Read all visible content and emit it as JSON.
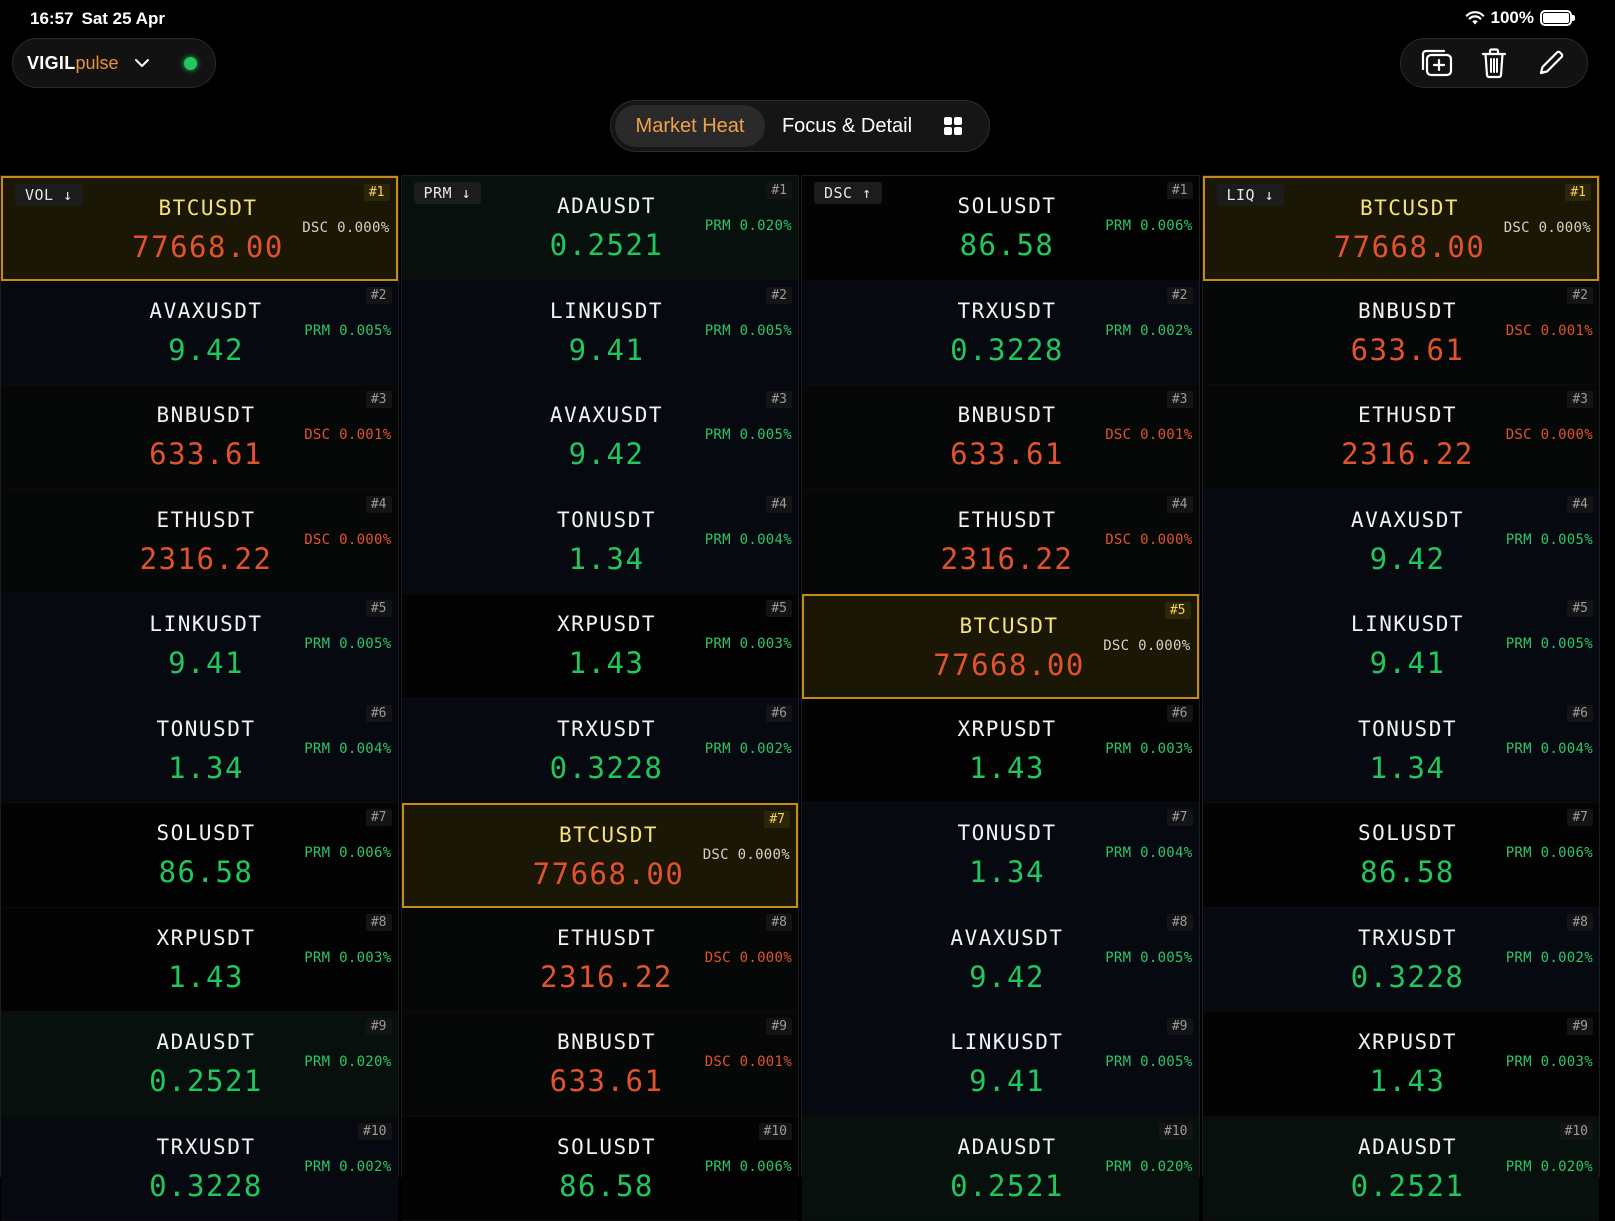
{
  "status": {
    "time": "16:57",
    "date": "Sat 25 Apr",
    "battery": "100%"
  },
  "app": {
    "brand_main": "VIGIL",
    "brand_sub": "pulse"
  },
  "tabs": {
    "market_heat": "Market Heat",
    "focus_detail": "Focus & Detail",
    "active": "Market Heat"
  },
  "icons": {
    "picker": "chevron-down-icon",
    "status": "live-status-dot",
    "add": "add-window-icon",
    "delete": "trash-icon",
    "edit": "pencil-icon",
    "grid": "grid-icon",
    "wifi": "wifi-icon",
    "battery": "battery-icon"
  },
  "colors": {
    "accent": "#f0a04b",
    "up": "#22c55e",
    "down": "#e0532e",
    "highlight_border": "#c88a17"
  },
  "columns": [
    {
      "sort_label": "VOL ↓",
      "rows": [
        {
          "rank": "#1",
          "symbol": "BTCUSDT",
          "price": "77668.00",
          "dir": "down",
          "metric": "DSC 0.000%",
          "mtype": "dsc",
          "highlight": true,
          "bg": "e"
        },
        {
          "rank": "#2",
          "symbol": "AVAXUSDT",
          "price": "9.42",
          "dir": "up",
          "metric": "PRM 0.005%",
          "mtype": "prm",
          "highlight": false,
          "bg": "a"
        },
        {
          "rank": "#3",
          "symbol": "BNBUSDT",
          "price": "633.61",
          "dir": "down",
          "metric": "DSC 0.001%",
          "mtype": "dsc",
          "highlight": false,
          "bg": "b"
        },
        {
          "rank": "#4",
          "symbol": "ETHUSDT",
          "price": "2316.22",
          "dir": "down",
          "metric": "DSC 0.000%",
          "mtype": "dsc",
          "highlight": false,
          "bg": "b"
        },
        {
          "rank": "#5",
          "symbol": "LINKUSDT",
          "price": "9.41",
          "dir": "up",
          "metric": "PRM 0.005%",
          "mtype": "prm",
          "highlight": false,
          "bg": "a"
        },
        {
          "rank": "#6",
          "symbol": "TONUSDT",
          "price": "1.34",
          "dir": "up",
          "metric": "PRM 0.004%",
          "mtype": "prm",
          "highlight": false,
          "bg": "a"
        },
        {
          "rank": "#7",
          "symbol": "SOLUSDT",
          "price": "86.58",
          "dir": "up",
          "metric": "PRM 0.006%",
          "mtype": "prm",
          "highlight": false,
          "bg": "c"
        },
        {
          "rank": "#8",
          "symbol": "XRPUSDT",
          "price": "1.43",
          "dir": "up",
          "metric": "PRM 0.003%",
          "mtype": "prm",
          "highlight": false,
          "bg": "c"
        },
        {
          "rank": "#9",
          "symbol": "ADAUSDT",
          "price": "0.2521",
          "dir": "up",
          "metric": "PRM 0.020%",
          "mtype": "prm",
          "highlight": false,
          "bg": "d"
        },
        {
          "rank": "#10",
          "symbol": "TRXUSDT",
          "price": "0.3228",
          "dir": "up",
          "metric": "PRM 0.002%",
          "mtype": "prm",
          "highlight": false,
          "bg": "a"
        }
      ]
    },
    {
      "sort_label": "PRM ↓",
      "rows": [
        {
          "rank": "#1",
          "symbol": "ADAUSDT",
          "price": "0.2521",
          "dir": "up",
          "metric": "PRM 0.020%",
          "mtype": "prm",
          "highlight": false,
          "bg": "d"
        },
        {
          "rank": "#2",
          "symbol": "LINKUSDT",
          "price": "9.41",
          "dir": "up",
          "metric": "PRM 0.005%",
          "mtype": "prm",
          "highlight": false,
          "bg": "a"
        },
        {
          "rank": "#3",
          "symbol": "AVAXUSDT",
          "price": "9.42",
          "dir": "up",
          "metric": "PRM 0.005%",
          "mtype": "prm",
          "highlight": false,
          "bg": "a"
        },
        {
          "rank": "#4",
          "symbol": "TONUSDT",
          "price": "1.34",
          "dir": "up",
          "metric": "PRM 0.004%",
          "mtype": "prm",
          "highlight": false,
          "bg": "a"
        },
        {
          "rank": "#5",
          "symbol": "XRPUSDT",
          "price": "1.43",
          "dir": "up",
          "metric": "PRM 0.003%",
          "mtype": "prm",
          "highlight": false,
          "bg": "c"
        },
        {
          "rank": "#6",
          "symbol": "TRXUSDT",
          "price": "0.3228",
          "dir": "up",
          "metric": "PRM 0.002%",
          "mtype": "prm",
          "highlight": false,
          "bg": "a"
        },
        {
          "rank": "#7",
          "symbol": "BTCUSDT",
          "price": "77668.00",
          "dir": "down",
          "metric": "DSC 0.000%",
          "mtype": "dsc",
          "highlight": true,
          "bg": "e"
        },
        {
          "rank": "#8",
          "symbol": "ETHUSDT",
          "price": "2316.22",
          "dir": "down",
          "metric": "DSC 0.000%",
          "mtype": "dsc",
          "highlight": false,
          "bg": "b"
        },
        {
          "rank": "#9",
          "symbol": "BNBUSDT",
          "price": "633.61",
          "dir": "down",
          "metric": "DSC 0.001%",
          "mtype": "dsc",
          "highlight": false,
          "bg": "b"
        },
        {
          "rank": "#10",
          "symbol": "SOLUSDT",
          "price": "86.58",
          "dir": "up",
          "metric": "PRM 0.006%",
          "mtype": "prm",
          "highlight": false,
          "bg": "c"
        }
      ]
    },
    {
      "sort_label": "DSC ↑",
      "rows": [
        {
          "rank": "#1",
          "symbol": "SOLUSDT",
          "price": "86.58",
          "dir": "up",
          "metric": "PRM 0.006%",
          "mtype": "prm",
          "highlight": false,
          "bg": "c"
        },
        {
          "rank": "#2",
          "symbol": "TRXUSDT",
          "price": "0.3228",
          "dir": "up",
          "metric": "PRM 0.002%",
          "mtype": "prm",
          "highlight": false,
          "bg": "a"
        },
        {
          "rank": "#3",
          "symbol": "BNBUSDT",
          "price": "633.61",
          "dir": "down",
          "metric": "DSC 0.001%",
          "mtype": "dsc",
          "highlight": false,
          "bg": "b"
        },
        {
          "rank": "#4",
          "symbol": "ETHUSDT",
          "price": "2316.22",
          "dir": "down",
          "metric": "DSC 0.000%",
          "mtype": "dsc",
          "highlight": false,
          "bg": "b"
        },
        {
          "rank": "#5",
          "symbol": "BTCUSDT",
          "price": "77668.00",
          "dir": "down",
          "metric": "DSC 0.000%",
          "mtype": "dsc",
          "highlight": true,
          "bg": "e"
        },
        {
          "rank": "#6",
          "symbol": "XRPUSDT",
          "price": "1.43",
          "dir": "up",
          "metric": "PRM 0.003%",
          "mtype": "prm",
          "highlight": false,
          "bg": "c"
        },
        {
          "rank": "#7",
          "symbol": "TONUSDT",
          "price": "1.34",
          "dir": "up",
          "metric": "PRM 0.004%",
          "mtype": "prm",
          "highlight": false,
          "bg": "a"
        },
        {
          "rank": "#8",
          "symbol": "AVAXUSDT",
          "price": "9.42",
          "dir": "up",
          "metric": "PRM 0.005%",
          "mtype": "prm",
          "highlight": false,
          "bg": "a"
        },
        {
          "rank": "#9",
          "symbol": "LINKUSDT",
          "price": "9.41",
          "dir": "up",
          "metric": "PRM 0.005%",
          "mtype": "prm",
          "highlight": false,
          "bg": "a"
        },
        {
          "rank": "#10",
          "symbol": "ADAUSDT",
          "price": "0.2521",
          "dir": "up",
          "metric": "PRM 0.020%",
          "mtype": "prm",
          "highlight": false,
          "bg": "d"
        }
      ]
    },
    {
      "sort_label": "LIQ ↓",
      "rows": [
        {
          "rank": "#1",
          "symbol": "BTCUSDT",
          "price": "77668.00",
          "dir": "down",
          "metric": "DSC 0.000%",
          "mtype": "dsc",
          "highlight": true,
          "bg": "e"
        },
        {
          "rank": "#2",
          "symbol": "BNBUSDT",
          "price": "633.61",
          "dir": "down",
          "metric": "DSC 0.001%",
          "mtype": "dsc",
          "highlight": false,
          "bg": "b"
        },
        {
          "rank": "#3",
          "symbol": "ETHUSDT",
          "price": "2316.22",
          "dir": "down",
          "metric": "DSC 0.000%",
          "mtype": "dsc",
          "highlight": false,
          "bg": "b"
        },
        {
          "rank": "#4",
          "symbol": "AVAXUSDT",
          "price": "9.42",
          "dir": "up",
          "metric": "PRM 0.005%",
          "mtype": "prm",
          "highlight": false,
          "bg": "a"
        },
        {
          "rank": "#5",
          "symbol": "LINKUSDT",
          "price": "9.41",
          "dir": "up",
          "metric": "PRM 0.005%",
          "mtype": "prm",
          "highlight": false,
          "bg": "a"
        },
        {
          "rank": "#6",
          "symbol": "TONUSDT",
          "price": "1.34",
          "dir": "up",
          "metric": "PRM 0.004%",
          "mtype": "prm",
          "highlight": false,
          "bg": "a"
        },
        {
          "rank": "#7",
          "symbol": "SOLUSDT",
          "price": "86.58",
          "dir": "up",
          "metric": "PRM 0.006%",
          "mtype": "prm",
          "highlight": false,
          "bg": "c"
        },
        {
          "rank": "#8",
          "symbol": "TRXUSDT",
          "price": "0.3228",
          "dir": "up",
          "metric": "PRM 0.002%",
          "mtype": "prm",
          "highlight": false,
          "bg": "a"
        },
        {
          "rank": "#9",
          "symbol": "XRPUSDT",
          "price": "1.43",
          "dir": "up",
          "metric": "PRM 0.003%",
          "mtype": "prm",
          "highlight": false,
          "bg": "c"
        },
        {
          "rank": "#10",
          "symbol": "ADAUSDT",
          "price": "0.2521",
          "dir": "up",
          "metric": "PRM 0.020%",
          "mtype": "prm",
          "highlight": false,
          "bg": "d"
        }
      ]
    }
  ]
}
